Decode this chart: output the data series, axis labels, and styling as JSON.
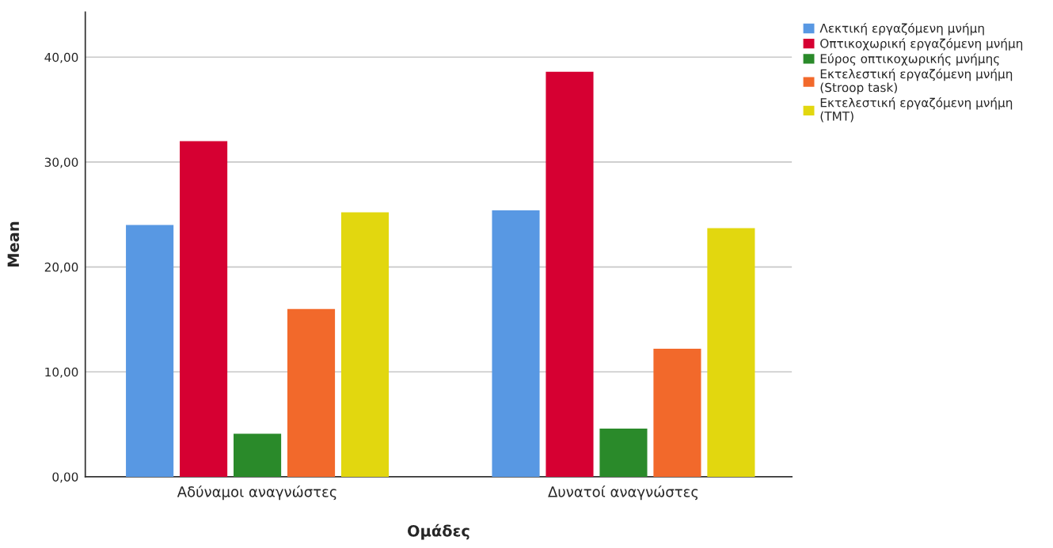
{
  "chart_data": {
    "type": "bar",
    "xlabel": "Ομάδες",
    "ylabel": "Mean",
    "categories": [
      "Αδύναμοι αναγνώστες",
      "Δυνατοί αναγνώστες"
    ],
    "series": [
      {
        "name": "Λεκτική εργαζόμενη μνήμη",
        "color": "#5898e3",
        "values": [
          24.0,
          25.4
        ]
      },
      {
        "name": "Οπτικοχωρική εργαζόμενη μνήμη",
        "color": "#d60032",
        "values": [
          32.0,
          38.6
        ]
      },
      {
        "name": "Εύρος οπτικοχωρικής μνήμης",
        "color": "#2a8a2a",
        "values": [
          4.1,
          4.6
        ]
      },
      {
        "name": "Εκτελεστική εργαζόμενη μνήμη\n(Stroop task)",
        "color": "#f2692b",
        "values": [
          16.0,
          12.2
        ]
      },
      {
        "name": "Εκτελεστική εργαζόμενη μνήμη\n(TMT)",
        "color": "#e2d70f",
        "values": [
          25.2,
          23.7
        ]
      }
    ],
    "ylim": [
      0,
      44.3
    ],
    "yticks": [
      {
        "value": 0,
        "label": "0,00"
      },
      {
        "value": 10,
        "label": "10,00"
      },
      {
        "value": 20,
        "label": "20,00"
      },
      {
        "value": 30,
        "label": "30,00"
      },
      {
        "value": 40,
        "label": "40,00"
      }
    ],
    "grid": "y",
    "legend": "top right"
  }
}
